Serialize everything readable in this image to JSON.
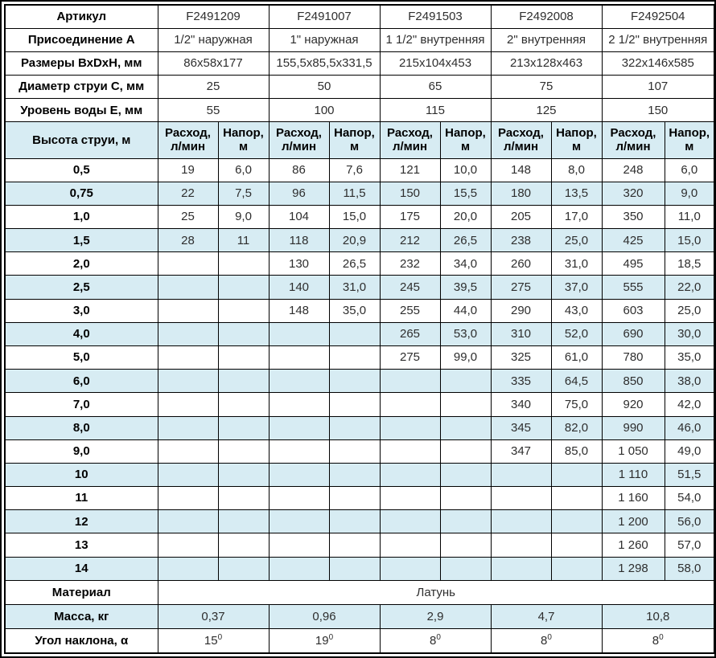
{
  "colors": {
    "band_blue": "#d7ecf3",
    "article_blue": "#1239a3",
    "border": "#000000",
    "value_text": "#2e2e2e"
  },
  "table": {
    "spec_rows": [
      {
        "label": "Артикул",
        "values": [
          "F2491209",
          "F2491007",
          "F2491503",
          "F2492008",
          "F2492504"
        ]
      },
      {
        "label": "Присоединение А",
        "values": [
          "1/2\" наружная",
          "1\" наружная",
          "1 1/2\" внутренняя",
          "2\" внутренняя",
          "2 1/2\" внутренняя"
        ]
      },
      {
        "label": "Размеры ВхDхН, мм",
        "values": [
          "86х58х177",
          "155,5х85,5х331,5",
          "215х104х453",
          "213х128х463",
          "322х146х585"
        ]
      },
      {
        "label": "Диаметр струи С, мм",
        "values": [
          "25",
          "50",
          "65",
          "75",
          "107"
        ]
      },
      {
        "label": "Уровень воды Е, мм",
        "values": [
          "55",
          "100",
          "115",
          "125",
          "150"
        ]
      }
    ],
    "jet_header": {
      "label": "Высота струи, м",
      "flow": "Расход,\nл/мин",
      "head": "Напор,\nм"
    },
    "jet_rows": [
      {
        "h": "0,5",
        "cells": [
          "19",
          "6,0",
          "86",
          "7,6",
          "121",
          "10,0",
          "148",
          "8,0",
          "248",
          "6,0"
        ]
      },
      {
        "h": "0,75",
        "cells": [
          "22",
          "7,5",
          "96",
          "11,5",
          "150",
          "15,5",
          "180",
          "13,5",
          "320",
          "9,0"
        ]
      },
      {
        "h": "1,0",
        "cells": [
          "25",
          "9,0",
          "104",
          "15,0",
          "175",
          "20,0",
          "205",
          "17,0",
          "350",
          "11,0"
        ]
      },
      {
        "h": "1,5",
        "cells": [
          "28",
          "11",
          "118",
          "20,9",
          "212",
          "26,5",
          "238",
          "25,0",
          "425",
          "15,0"
        ]
      },
      {
        "h": "2,0",
        "cells": [
          "",
          "",
          "130",
          "26,5",
          "232",
          "34,0",
          "260",
          "31,0",
          "495",
          "18,5"
        ]
      },
      {
        "h": "2,5",
        "cells": [
          "",
          "",
          "140",
          "31,0",
          "245",
          "39,5",
          "275",
          "37,0",
          "555",
          "22,0"
        ]
      },
      {
        "h": "3,0",
        "cells": [
          "",
          "",
          "148",
          "35,0",
          "255",
          "44,0",
          "290",
          "43,0",
          "603",
          "25,0"
        ]
      },
      {
        "h": "4,0",
        "cells": [
          "",
          "",
          "",
          "",
          "265",
          "53,0",
          "310",
          "52,0",
          "690",
          "30,0"
        ]
      },
      {
        "h": "5,0",
        "cells": [
          "",
          "",
          "",
          "",
          "275",
          "99,0",
          "325",
          "61,0",
          "780",
          "35,0"
        ]
      },
      {
        "h": "6,0",
        "cells": [
          "",
          "",
          "",
          "",
          "",
          "",
          "335",
          "64,5",
          "850",
          "38,0"
        ]
      },
      {
        "h": "7,0",
        "cells": [
          "",
          "",
          "",
          "",
          "",
          "",
          "340",
          "75,0",
          "920",
          "42,0"
        ]
      },
      {
        "h": "8,0",
        "cells": [
          "",
          "",
          "",
          "",
          "",
          "",
          "345",
          "82,0",
          "990",
          "46,0"
        ]
      },
      {
        "h": "9,0",
        "cells": [
          "",
          "",
          "",
          "",
          "",
          "",
          "347",
          "85,0",
          "1 050",
          "49,0"
        ]
      },
      {
        "h": "10",
        "cells": [
          "",
          "",
          "",
          "",
          "",
          "",
          "",
          "",
          "1 110",
          "51,5"
        ]
      },
      {
        "h": "11",
        "cells": [
          "",
          "",
          "",
          "",
          "",
          "",
          "",
          "",
          "1 160",
          "54,0"
        ]
      },
      {
        "h": "12",
        "cells": [
          "",
          "",
          "",
          "",
          "",
          "",
          "",
          "",
          "1 200",
          "56,0"
        ]
      },
      {
        "h": "13",
        "cells": [
          "",
          "",
          "",
          "",
          "",
          "",
          "",
          "",
          "1 260",
          "57,0"
        ]
      },
      {
        "h": "14",
        "cells": [
          "",
          "",
          "",
          "",
          "",
          "",
          "",
          "",
          "1 298",
          "58,0"
        ]
      }
    ],
    "material": {
      "label": "Материал",
      "value": "Латунь"
    },
    "mass": {
      "label": "Масса, кг",
      "values": [
        "0,37",
        "0,96",
        "2,9",
        "4,7",
        "10,8"
      ]
    },
    "angle": {
      "label": "Угол наклона, α",
      "values": [
        {
          "base": "15",
          "sup": "0"
        },
        {
          "base": "19",
          "sup": "0"
        },
        {
          "base": "8",
          "sup": "0"
        },
        {
          "base": "8",
          "sup": "0"
        },
        {
          "base": "8",
          "sup": "0"
        }
      ]
    }
  }
}
